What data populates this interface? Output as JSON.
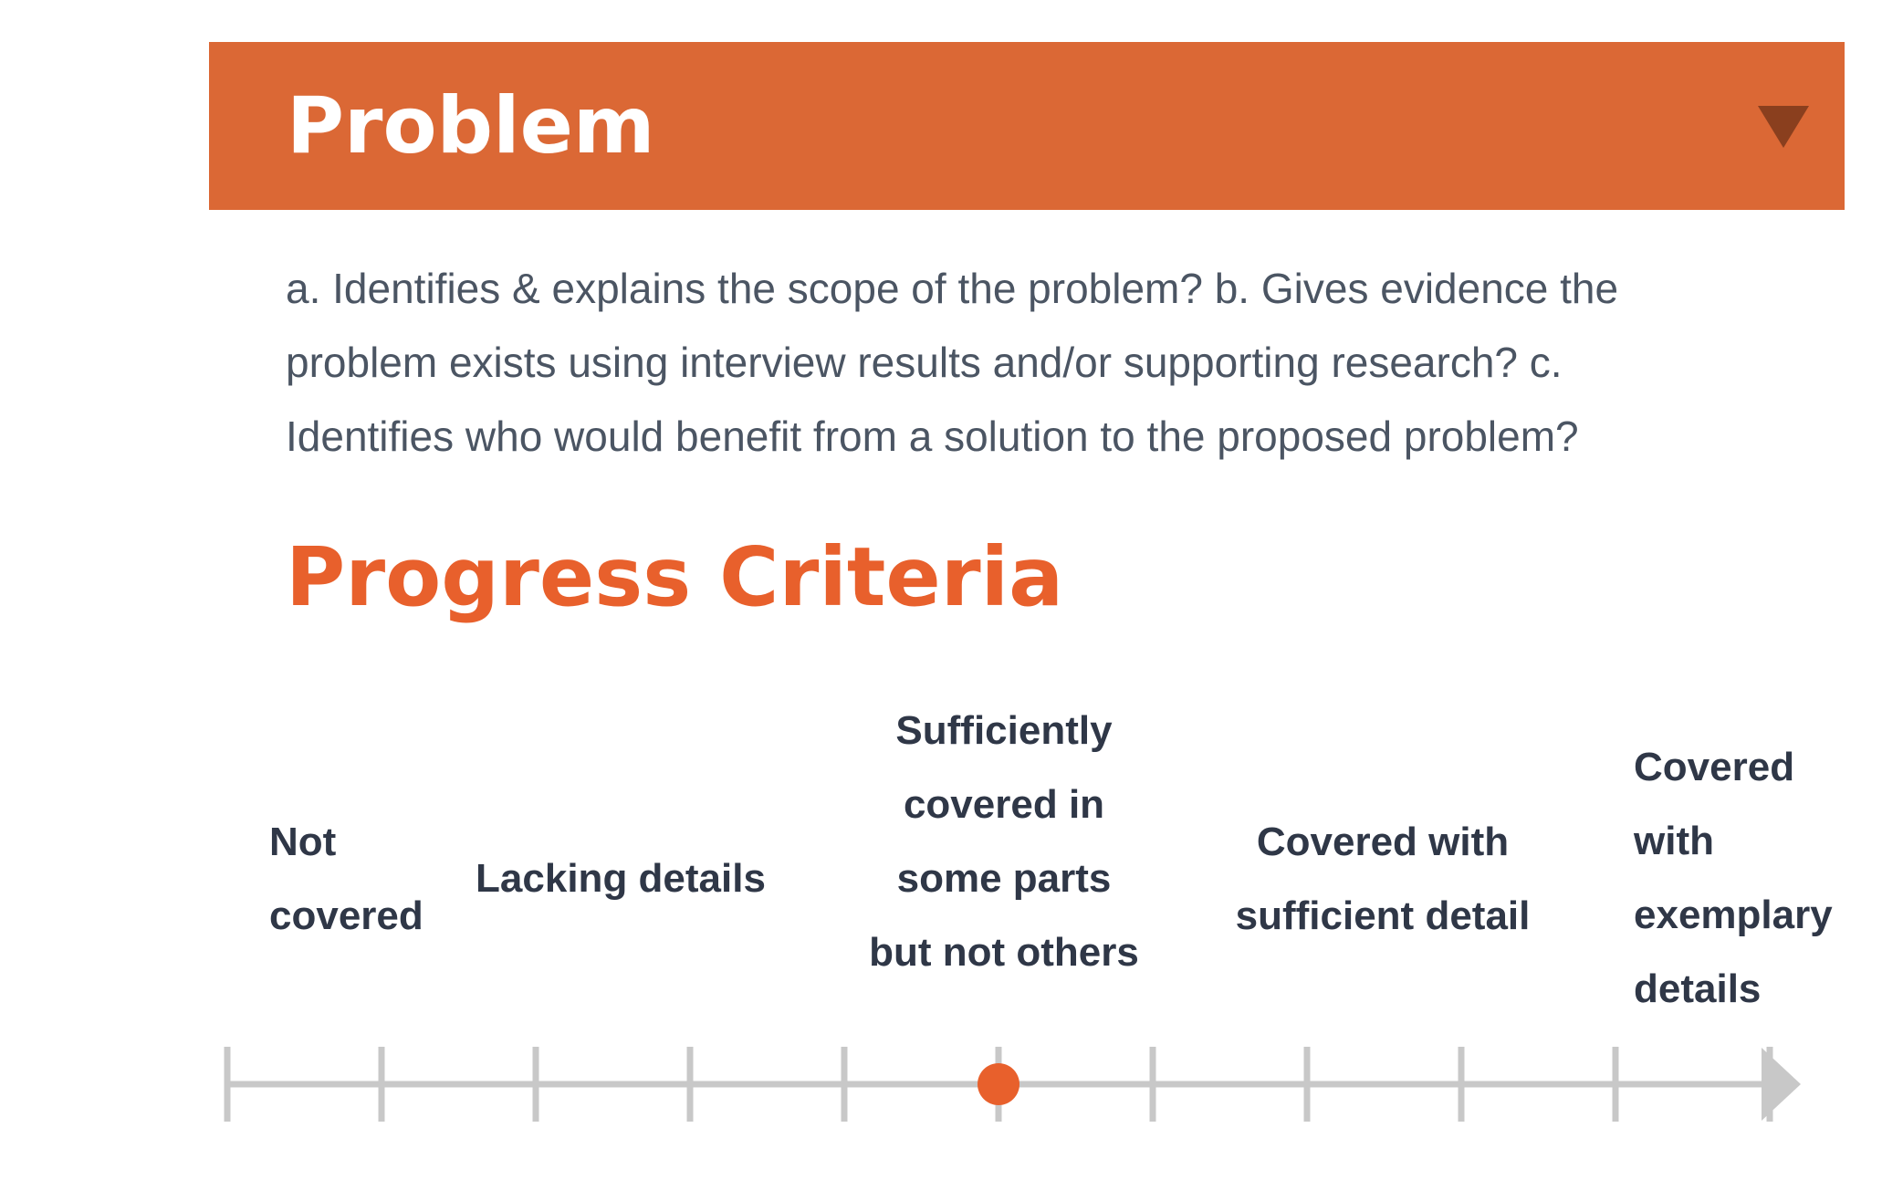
{
  "header": {
    "title": "Problem",
    "toggle_icon": "caret-down-icon"
  },
  "description": "a. Identifies & explains the scope of the problem? b. Gives evidence the problem exists using interview results and/or supporting research? c. Identifies who would benefit from a solution to the proposed problem?",
  "progress": {
    "title": "Progress Criteria",
    "levels": [
      "Not covered",
      "Lacking details",
      "Sufficiently covered in some parts but not others",
      "Covered with sufficient detail",
      "Covered with exemplary details"
    ],
    "tick_count": 11,
    "selected_tick": 5,
    "scale_fraction": 0.5
  },
  "colors": {
    "header_bg": "#db6835",
    "accent": "#e8602c",
    "track": "#c8c8c8",
    "text": "#2f3747",
    "body_text": "#4b5563"
  }
}
